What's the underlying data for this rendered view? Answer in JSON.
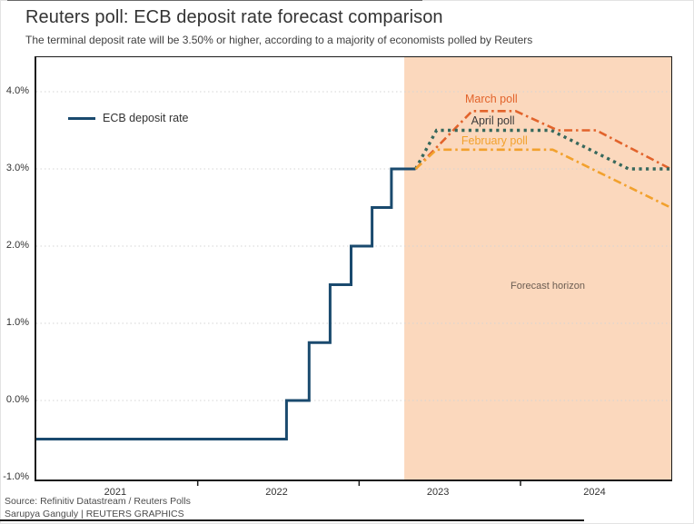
{
  "header": {
    "title": "Reuters poll: ECB deposit rate forecast comparison",
    "subtitle": "The terminal deposit rate will be 3.50% or higher, according to a majority of economists polled by Reuters"
  },
  "footer": {
    "source": "Source: Refinitiv Datastream / Reuters Polls",
    "byline": "Sarupya Ganguly | REUTERS GRAPHICS"
  },
  "colors": {
    "ecb_line": "#1a4a6e",
    "march": "#e2632b",
    "april": "#37685c",
    "april_label": "#3a3a3a",
    "february": "#f2a12d",
    "forecast_bg": "#fbd8bd",
    "grid": "#d4d4d4",
    "axis": "#1a1a1a",
    "text": "#333333",
    "forecast_label": "#6b5d52"
  },
  "chart_data": {
    "type": "line",
    "title": "Reuters poll: ECB deposit rate forecast comparison",
    "subtitle": "The terminal deposit rate will be 3.50% or higher, according to a majority of economists polled by Reuters",
    "y_axis": {
      "unit": "%",
      "ticks": [
        {
          "label": "4.0%",
          "value": 4.0
        },
        {
          "label": "3.0%",
          "value": 3.0
        },
        {
          "label": "2.0%",
          "value": 2.0
        },
        {
          "label": "1.0%",
          "value": 1.0
        },
        {
          "label": "0.0%",
          "value": 0.0
        },
        {
          "label": "-1.0%",
          "value": -1.0
        }
      ],
      "range": [
        -1.02,
        4.45
      ],
      "gridlines": [
        4.0,
        3.0,
        2.0,
        1.0,
        0.0
      ]
    },
    "x_axis": {
      "range": [
        2021.0,
        2024.93
      ],
      "tick_years": [
        2022,
        2023,
        2024
      ],
      "labels": [
        {
          "label": "2021",
          "x": 2021.5
        },
        {
          "label": "2022",
          "x": 2022.5
        },
        {
          "label": "2023",
          "x": 2023.5
        },
        {
          "label": "2024",
          "x": 2024.47
        }
      ]
    },
    "forecast_region": {
      "start": 2023.28,
      "end": 2024.93,
      "label": "Forecast horizon"
    },
    "legend": {
      "label": "ECB deposit rate"
    },
    "series": [
      {
        "name": "ECB deposit rate",
        "style": "solid",
        "color_key": "ecb_line",
        "width": 3,
        "points": [
          [
            2021.0,
            -0.5
          ],
          [
            2022.55,
            -0.5
          ],
          [
            2022.55,
            0.0
          ],
          [
            2022.69,
            0.0
          ],
          [
            2022.69,
            0.75
          ],
          [
            2022.82,
            0.75
          ],
          [
            2022.82,
            1.5
          ],
          [
            2022.95,
            1.5
          ],
          [
            2022.95,
            2.0
          ],
          [
            2023.08,
            2.0
          ],
          [
            2023.08,
            2.5
          ],
          [
            2023.2,
            2.5
          ],
          [
            2023.2,
            3.0
          ],
          [
            2023.35,
            3.0
          ]
        ]
      },
      {
        "name": "March poll",
        "style": "dashdot",
        "color_key": "march",
        "width": 2.6,
        "points": [
          [
            2023.35,
            3.0
          ],
          [
            2023.7,
            3.75
          ],
          [
            2023.97,
            3.75
          ],
          [
            2024.23,
            3.5
          ],
          [
            2024.47,
            3.5
          ],
          [
            2024.93,
            3.0
          ]
        ]
      },
      {
        "name": "April poll",
        "style": "dotted",
        "color_key": "april",
        "width": 3.4,
        "points": [
          [
            2023.35,
            3.0
          ],
          [
            2023.48,
            3.5
          ],
          [
            2024.19,
            3.5
          ],
          [
            2024.67,
            3.0
          ],
          [
            2024.93,
            3.0
          ]
        ]
      },
      {
        "name": "February poll",
        "style": "dashdot",
        "color_key": "february",
        "width": 2.6,
        "points": [
          [
            2023.35,
            3.0
          ],
          [
            2023.48,
            3.25
          ],
          [
            2024.2,
            3.25
          ],
          [
            2024.93,
            2.5
          ]
        ]
      }
    ],
    "annotations": [
      {
        "text": "March poll",
        "x": 2023.83,
        "y": 3.89,
        "color_key": "march",
        "size": 12.5
      },
      {
        "text": "April poll",
        "x": 2023.84,
        "y": 3.61,
        "color_key": "april_label",
        "size": 12.5
      },
      {
        "text": "February poll",
        "x": 2023.85,
        "y": 3.35,
        "color_key": "february",
        "size": 12.5
      },
      {
        "text": "Forecast horizon",
        "x": 2024.18,
        "y": 1.47,
        "color_key": "forecast_label",
        "size": 11
      }
    ]
  }
}
